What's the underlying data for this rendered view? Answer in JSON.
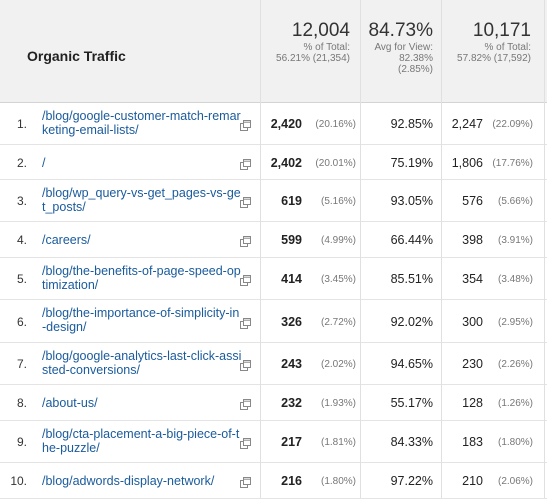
{
  "table": {
    "dimension_title": "Organic Traffic",
    "metrics": [
      {
        "total": "12,004",
        "sub1": "% of Total:",
        "sub2": "56.21% (21,354)",
        "sub3": ""
      },
      {
        "total": "84.73%",
        "sub1": "Avg for View:",
        "sub2": "82.38%",
        "sub3": "(2.85%)"
      },
      {
        "total": "10,171",
        "sub1": "% of Total:",
        "sub2": "57.82% (17,592)",
        "sub3": ""
      }
    ],
    "rows": [
      {
        "idx": "1.",
        "page": "/blog/google-customer-match-remarketing-email-lists/",
        "m1": "2,420",
        "m1pct": "(20.16%)",
        "m2": "92.85%",
        "m3": "2,247",
        "m3pct": "(22.09%)"
      },
      {
        "idx": "2.",
        "page": "/",
        "m1": "2,402",
        "m1pct": "(20.01%)",
        "m2": "75.19%",
        "m3": "1,806",
        "m3pct": "(17.76%)"
      },
      {
        "idx": "3.",
        "page": "/blog/wp_query-vs-get_pages-vs-get_posts/",
        "m1": "619",
        "m1pct": "(5.16%)",
        "m2": "93.05%",
        "m3": "576",
        "m3pct": "(5.66%)"
      },
      {
        "idx": "4.",
        "page": "/careers/",
        "m1": "599",
        "m1pct": "(4.99%)",
        "m2": "66.44%",
        "m3": "398",
        "m3pct": "(3.91%)"
      },
      {
        "idx": "5.",
        "page": "/blog/the-benefits-of-page-speed-optimization/",
        "m1": "414",
        "m1pct": "(3.45%)",
        "m2": "85.51%",
        "m3": "354",
        "m3pct": "(3.48%)"
      },
      {
        "idx": "6.",
        "page": "/blog/the-importance-of-simplicity-in-design/",
        "m1": "326",
        "m1pct": "(2.72%)",
        "m2": "92.02%",
        "m3": "300",
        "m3pct": "(2.95%)"
      },
      {
        "idx": "7.",
        "page": "/blog/google-analytics-last-click-assisted-conversions/",
        "m1": "243",
        "m1pct": "(2.02%)",
        "m2": "94.65%",
        "m3": "230",
        "m3pct": "(2.26%)"
      },
      {
        "idx": "8.",
        "page": "/about-us/",
        "m1": "232",
        "m1pct": "(1.93%)",
        "m2": "55.17%",
        "m3": "128",
        "m3pct": "(1.26%)"
      },
      {
        "idx": "9.",
        "page": "/blog/cta-placement-a-big-piece-of-the-puzzle/",
        "m1": "217",
        "m1pct": "(1.81%)",
        "m2": "84.33%",
        "m3": "183",
        "m3pct": "(1.80%)"
      },
      {
        "idx": "10.",
        "page": "/blog/adwords-display-network/",
        "m1": "216",
        "m1pct": "(1.80%)",
        "m2": "97.22%",
        "m3": "210",
        "m3pct": "(2.06%)"
      }
    ],
    "row_icon": "open-in-new-window-icon"
  }
}
